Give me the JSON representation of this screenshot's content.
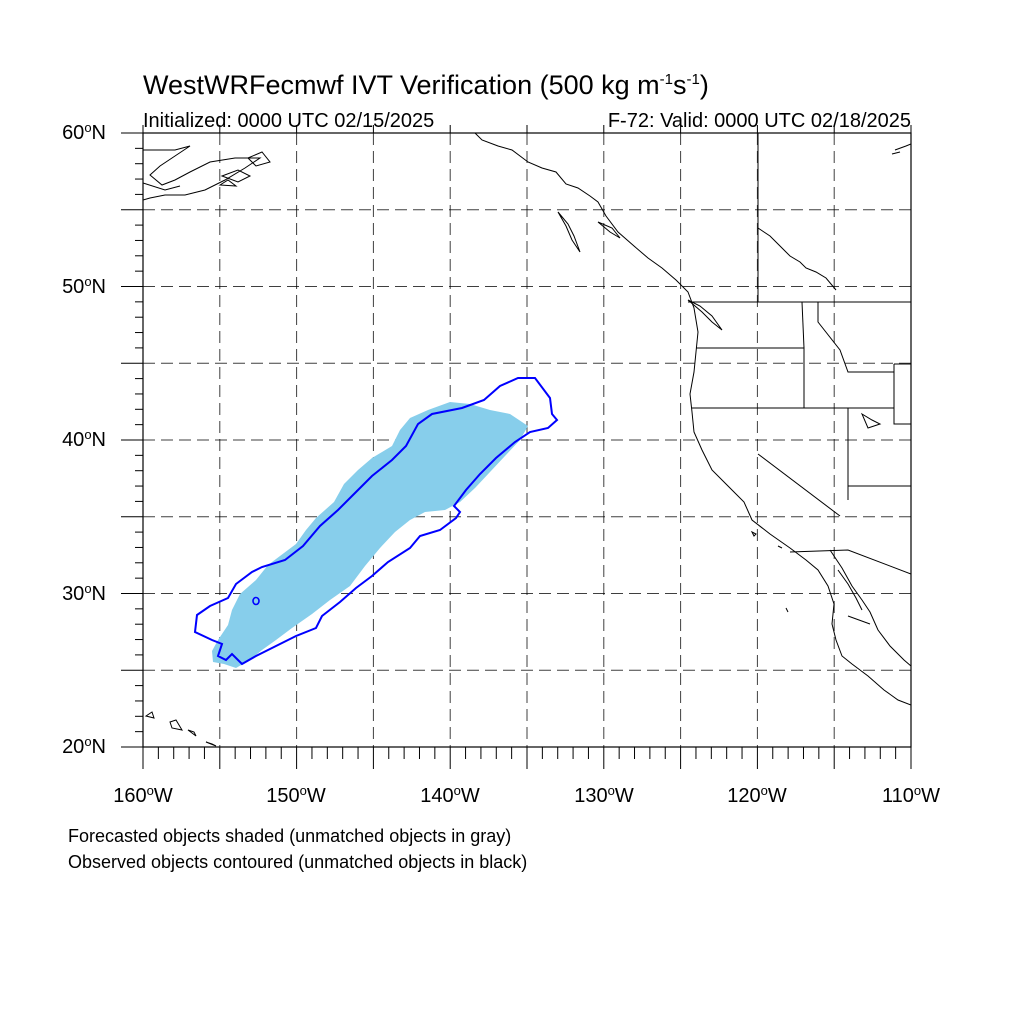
{
  "title": {
    "prefix": "WestWRFecmwf IVT Verification (500 kg m",
    "sup1": "-1",
    "middle": "s",
    "sup2": "-1",
    "suffix": ")"
  },
  "subtitle": {
    "initialized": "Initialized: 0000 UTC 02/15/2025",
    "valid": "F-72: Valid: 0000 UTC 02/18/2025"
  },
  "map": {
    "lon_range": [
      -160,
      -110
    ],
    "lat_range": [
      20,
      60
    ],
    "grid_lon_step": 5,
    "grid_lat_step": 5,
    "grid_style": "dashed",
    "lat_labels": [
      {
        "value": "60",
        "suffix": "N"
      },
      {
        "value": "50",
        "suffix": "N"
      },
      {
        "value": "40",
        "suffix": "N"
      },
      {
        "value": "30",
        "suffix": "N"
      },
      {
        "value": "20",
        "suffix": "N"
      }
    ],
    "lon_labels": [
      {
        "value": "160",
        "suffix": "W"
      },
      {
        "value": "150",
        "suffix": "W"
      },
      {
        "value": "140",
        "suffix": "W"
      },
      {
        "value": "130",
        "suffix": "W"
      },
      {
        "value": "120",
        "suffix": "W"
      },
      {
        "value": "110",
        "suffix": "W"
      }
    ],
    "forecast_object_color": "#87ceeb",
    "observed_contour_color": "#0000ff",
    "coastline_color": "#000000"
  },
  "captions": {
    "line1": "Forecasted objects shaded (unmatched objects in gray)",
    "line2": "Observed objects contoured (unmatched objects in black)"
  }
}
